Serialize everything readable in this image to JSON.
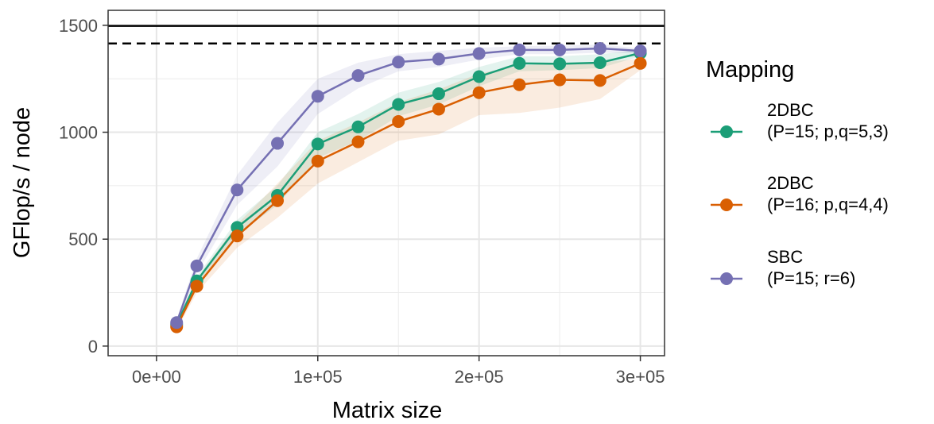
{
  "chart_data": {
    "type": "line",
    "xlabel": "Matrix size",
    "ylabel": "GFlop/s / node",
    "xlim": [
      -30000,
      315000
    ],
    "ylim": [
      -45,
      1570
    ],
    "x_ticks": [
      0,
      100000,
      200000,
      300000
    ],
    "x_tick_labels": [
      "0e+00",
      "1e+05",
      "2e+05",
      "3e+05"
    ],
    "y_ticks": [
      0,
      500,
      1000,
      1500
    ],
    "y_tick_labels": [
      "0",
      "500",
      "1000",
      "1500"
    ],
    "grid": true,
    "legend_title": "Mapping",
    "legend_position": "right",
    "reference_lines": [
      {
        "y": 1497,
        "style": "solid"
      },
      {
        "y": 1415,
        "style": "dashed"
      }
    ],
    "x": [
      12500,
      25000,
      50000,
      75000,
      100000,
      125000,
      150000,
      175000,
      200000,
      225000,
      250000,
      275000,
      300000
    ],
    "series": [
      {
        "name_line1": "2DBC",
        "name_line2": "(P=15; p,q=5,3)",
        "color": "#1b9e77",
        "values": [
          100,
          305,
          555,
          705,
          945,
          1025,
          1130,
          1180,
          1260,
          1322,
          1320,
          1325,
          1370
        ],
        "band_lower": [
          85,
          285,
          520,
          660,
          880,
          960,
          1075,
          1130,
          1215,
          1285,
          1290,
          1300,
          1355
        ],
        "band_upper": [
          115,
          325,
          590,
          750,
          1000,
          1085,
          1185,
          1235,
          1305,
          1355,
          1355,
          1365,
          1385
        ]
      },
      {
        "name_line1": "2DBC",
        "name_line2": "(P=16; p,q=4,4)",
        "color": "#d95f02",
        "values": [
          90,
          280,
          515,
          680,
          865,
          955,
          1050,
          1108,
          1185,
          1222,
          1245,
          1242,
          1322
        ],
        "band_lower": [
          75,
          250,
          460,
          600,
          760,
          860,
          960,
          990,
          1080,
          1090,
          1115,
          1155,
          1290
        ],
        "band_upper": [
          105,
          315,
          570,
          760,
          960,
          1045,
          1140,
          1200,
          1275,
          1310,
          1325,
          1325,
          1345
        ]
      },
      {
        "name_line1": "SBC",
        "name_line2": "(P=15; r=6)",
        "color": "#7570b3",
        "values": [
          110,
          375,
          730,
          948,
          1168,
          1265,
          1328,
          1342,
          1368,
          1385,
          1385,
          1392,
          1380
        ],
        "band_lower": [
          95,
          340,
          660,
          840,
          1085,
          1205,
          1285,
          1305,
          1340,
          1365,
          1365,
          1372,
          1368
        ],
        "band_upper": [
          125,
          410,
          800,
          1045,
          1250,
          1325,
          1365,
          1380,
          1395,
          1402,
          1405,
          1410,
          1392
        ]
      }
    ]
  }
}
